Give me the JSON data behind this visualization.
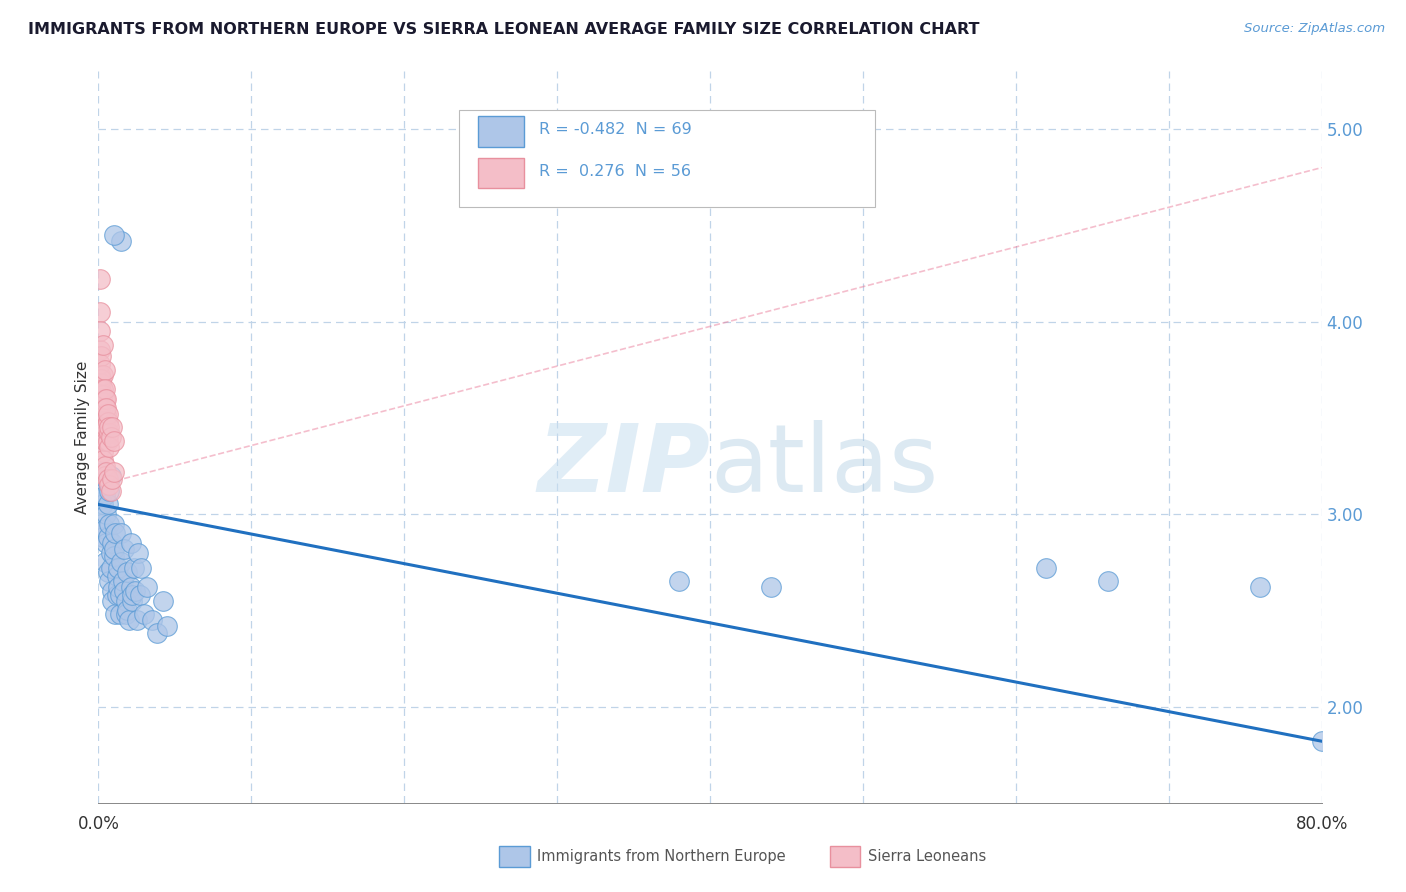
{
  "title": "IMMIGRANTS FROM NORTHERN EUROPE VS SIERRA LEONEAN AVERAGE FAMILY SIZE CORRELATION CHART",
  "source": "Source: ZipAtlas.com",
  "ylabel": "Average Family Size",
  "xlim": [
    0.0,
    0.8
  ],
  "ylim": [
    1.5,
    5.3
  ],
  "yticks": [
    2.0,
    3.0,
    4.0,
    5.0
  ],
  "xtick_labels": [
    "0.0%",
    "80.0%"
  ],
  "legend_blue_label": "Immigrants from Northern Europe",
  "legend_pink_label": "Sierra Leoneans",
  "r_blue": -0.482,
  "n_blue": 69,
  "r_pink": 0.276,
  "n_pink": 56,
  "blue_color": "#5b9bd5",
  "pink_color": "#e8909e",
  "blue_fill": "#aec6e8",
  "pink_fill": "#f4bec8",
  "trend_blue_color": "#2070c0",
  "trend_pink_color": "#e87090",
  "background_color": "#ffffff",
  "grid_color": "#c0d4e8",
  "blue_trend_x": [
    0.0,
    0.8
  ],
  "blue_trend_y": [
    3.05,
    1.82
  ],
  "pink_trend_x": [
    0.0,
    0.8
  ],
  "pink_trend_y": [
    3.15,
    4.8
  ],
  "blue_dots": [
    [
      0.001,
      3.18
    ],
    [
      0.002,
      3.08
    ],
    [
      0.002,
      2.95
    ],
    [
      0.003,
      3.22
    ],
    [
      0.003,
      2.88
    ],
    [
      0.003,
      3.05
    ],
    [
      0.004,
      2.75
    ],
    [
      0.004,
      2.92
    ],
    [
      0.004,
      3.1
    ],
    [
      0.005,
      3.18
    ],
    [
      0.005,
      2.85
    ],
    [
      0.005,
      3.0
    ],
    [
      0.006,
      2.7
    ],
    [
      0.006,
      2.88
    ],
    [
      0.006,
      3.05
    ],
    [
      0.007,
      2.95
    ],
    [
      0.007,
      2.65
    ],
    [
      0.007,
      3.12
    ],
    [
      0.008,
      3.2
    ],
    [
      0.008,
      2.8
    ],
    [
      0.008,
      2.72
    ],
    [
      0.009,
      2.6
    ],
    [
      0.009,
      2.85
    ],
    [
      0.009,
      2.55
    ],
    [
      0.01,
      2.78
    ],
    [
      0.01,
      2.95
    ],
    [
      0.01,
      2.82
    ],
    [
      0.011,
      2.48
    ],
    [
      0.011,
      2.9
    ],
    [
      0.012,
      2.68
    ],
    [
      0.012,
      2.58
    ],
    [
      0.013,
      2.72
    ],
    [
      0.013,
      2.62
    ],
    [
      0.014,
      2.58
    ],
    [
      0.014,
      2.48
    ],
    [
      0.015,
      2.9
    ],
    [
      0.015,
      2.75
    ],
    [
      0.016,
      2.65
    ],
    [
      0.017,
      2.82
    ],
    [
      0.017,
      2.6
    ],
    [
      0.018,
      2.55
    ],
    [
      0.018,
      2.48
    ],
    [
      0.019,
      2.7
    ],
    [
      0.019,
      2.5
    ],
    [
      0.02,
      2.45
    ],
    [
      0.021,
      2.85
    ],
    [
      0.021,
      2.62
    ],
    [
      0.022,
      2.55
    ],
    [
      0.022,
      2.58
    ],
    [
      0.023,
      2.72
    ],
    [
      0.024,
      2.6
    ],
    [
      0.025,
      2.45
    ],
    [
      0.026,
      2.8
    ],
    [
      0.027,
      2.58
    ],
    [
      0.028,
      2.72
    ],
    [
      0.03,
      2.48
    ],
    [
      0.032,
      2.62
    ],
    [
      0.035,
      2.45
    ],
    [
      0.038,
      2.38
    ],
    [
      0.042,
      2.55
    ],
    [
      0.045,
      2.42
    ],
    [
      0.015,
      4.42
    ],
    [
      0.01,
      4.45
    ],
    [
      0.38,
      2.65
    ],
    [
      0.44,
      2.62
    ],
    [
      0.62,
      2.72
    ],
    [
      0.66,
      2.65
    ],
    [
      0.76,
      2.62
    ],
    [
      0.8,
      1.82
    ]
  ],
  "pink_dots": [
    [
      0.001,
      3.85
    ],
    [
      0.001,
      3.72
    ],
    [
      0.001,
      3.65
    ],
    [
      0.001,
      4.05
    ],
    [
      0.001,
      3.95
    ],
    [
      0.001,
      4.22
    ],
    [
      0.001,
      3.55
    ],
    [
      0.001,
      3.78
    ],
    [
      0.002,
      3.68
    ],
    [
      0.002,
      3.82
    ],
    [
      0.002,
      3.62
    ],
    [
      0.002,
      3.45
    ],
    [
      0.002,
      3.4
    ],
    [
      0.002,
      3.35
    ],
    [
      0.002,
      3.7
    ],
    [
      0.002,
      3.52
    ],
    [
      0.003,
      3.45
    ],
    [
      0.003,
      3.58
    ],
    [
      0.003,
      3.88
    ],
    [
      0.003,
      3.72
    ],
    [
      0.003,
      3.62
    ],
    [
      0.003,
      3.42
    ],
    [
      0.003,
      3.55
    ],
    [
      0.003,
      3.65
    ],
    [
      0.003,
      3.32
    ],
    [
      0.003,
      3.28
    ],
    [
      0.004,
      3.48
    ],
    [
      0.004,
      3.6
    ],
    [
      0.004,
      3.75
    ],
    [
      0.004,
      3.38
    ],
    [
      0.004,
      3.55
    ],
    [
      0.004,
      3.45
    ],
    [
      0.004,
      3.65
    ],
    [
      0.004,
      3.25
    ],
    [
      0.004,
      3.2
    ],
    [
      0.005,
      3.52
    ],
    [
      0.005,
      3.42
    ],
    [
      0.005,
      3.38
    ],
    [
      0.005,
      3.6
    ],
    [
      0.005,
      3.45
    ],
    [
      0.005,
      3.55
    ],
    [
      0.005,
      3.22
    ],
    [
      0.006,
      3.48
    ],
    [
      0.006,
      3.38
    ],
    [
      0.006,
      3.52
    ],
    [
      0.006,
      3.18
    ],
    [
      0.007,
      3.42
    ],
    [
      0.007,
      3.45
    ],
    [
      0.007,
      3.35
    ],
    [
      0.007,
      3.15
    ],
    [
      0.008,
      3.4
    ],
    [
      0.008,
      3.12
    ],
    [
      0.009,
      3.45
    ],
    [
      0.009,
      3.18
    ],
    [
      0.01,
      3.38
    ],
    [
      0.01,
      3.22
    ]
  ]
}
